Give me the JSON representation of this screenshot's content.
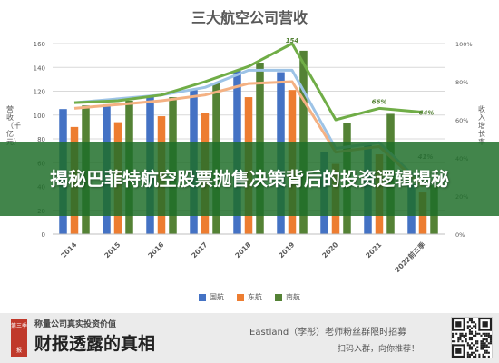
{
  "chart_data": {
    "type": "bar",
    "title": "三大航空公司营收",
    "xlabel": "",
    "ylabel": "营收（千亿元）",
    "y2label": "收入增长率",
    "ylim": [
      0,
      160
    ],
    "yticks": [
      0,
      20,
      40,
      60,
      80,
      100,
      120,
      140,
      160
    ],
    "y2lim": [
      0,
      100
    ],
    "y2ticks": [
      "0%",
      "20%",
      "40%",
      "60%",
      "80%",
      "100%"
    ],
    "categories": [
      "2014",
      "2015",
      "2016",
      "2017",
      "2018",
      "2019",
      "2020",
      "2021",
      "2022前三季"
    ],
    "series": [
      {
        "name": "国航",
        "color": "#4472c4",
        "values": [
          105,
          109,
          116,
          121,
          137,
          136,
          69,
          75,
          42
        ]
      },
      {
        "name": "东航",
        "color": "#ed7d31",
        "values": [
          90,
          94,
          99,
          102,
          115,
          121,
          59,
          67,
          35
        ]
      },
      {
        "name": "南航",
        "color": "#548235",
        "values": [
          108,
          112,
          115,
          127,
          144,
          154,
          93,
          101,
          41
        ]
      }
    ],
    "lines": [
      {
        "color": "#9dc3e6",
        "values": [
          69,
          71,
          73,
          77,
          86,
          86,
          45,
          48,
          26
        ]
      },
      {
        "color": "#f4b183",
        "values": [
          66,
          68,
          70,
          73,
          79,
          80,
          43,
          46,
          25
        ]
      },
      {
        "color": "#70ad47",
        "values": [
          69,
          70,
          73,
          80,
          88,
          100,
          60,
          66,
          64
        ]
      }
    ],
    "annotations": [
      "154",
      "66%",
      "64%",
      "41%"
    ]
  },
  "legend": [
    {
      "name": "国航",
      "color": "#4472c4"
    },
    {
      "name": "东航",
      "color": "#ed7d31"
    },
    {
      "name": "南航",
      "color": "#548235"
    }
  ],
  "banner": {
    "title": "揭秘巴菲特航空股票抛售决策背后的投资逻辑揭秘"
  },
  "footer": {
    "logo_top": "第三季",
    "logo_bottom": "报",
    "tagline": "称量公司真实投资价值",
    "brand": "财报透露的真相",
    "line1": "Eastland（李彤）老师粉丝群限时招募",
    "line2": "扫码入群，向你推荐！"
  }
}
